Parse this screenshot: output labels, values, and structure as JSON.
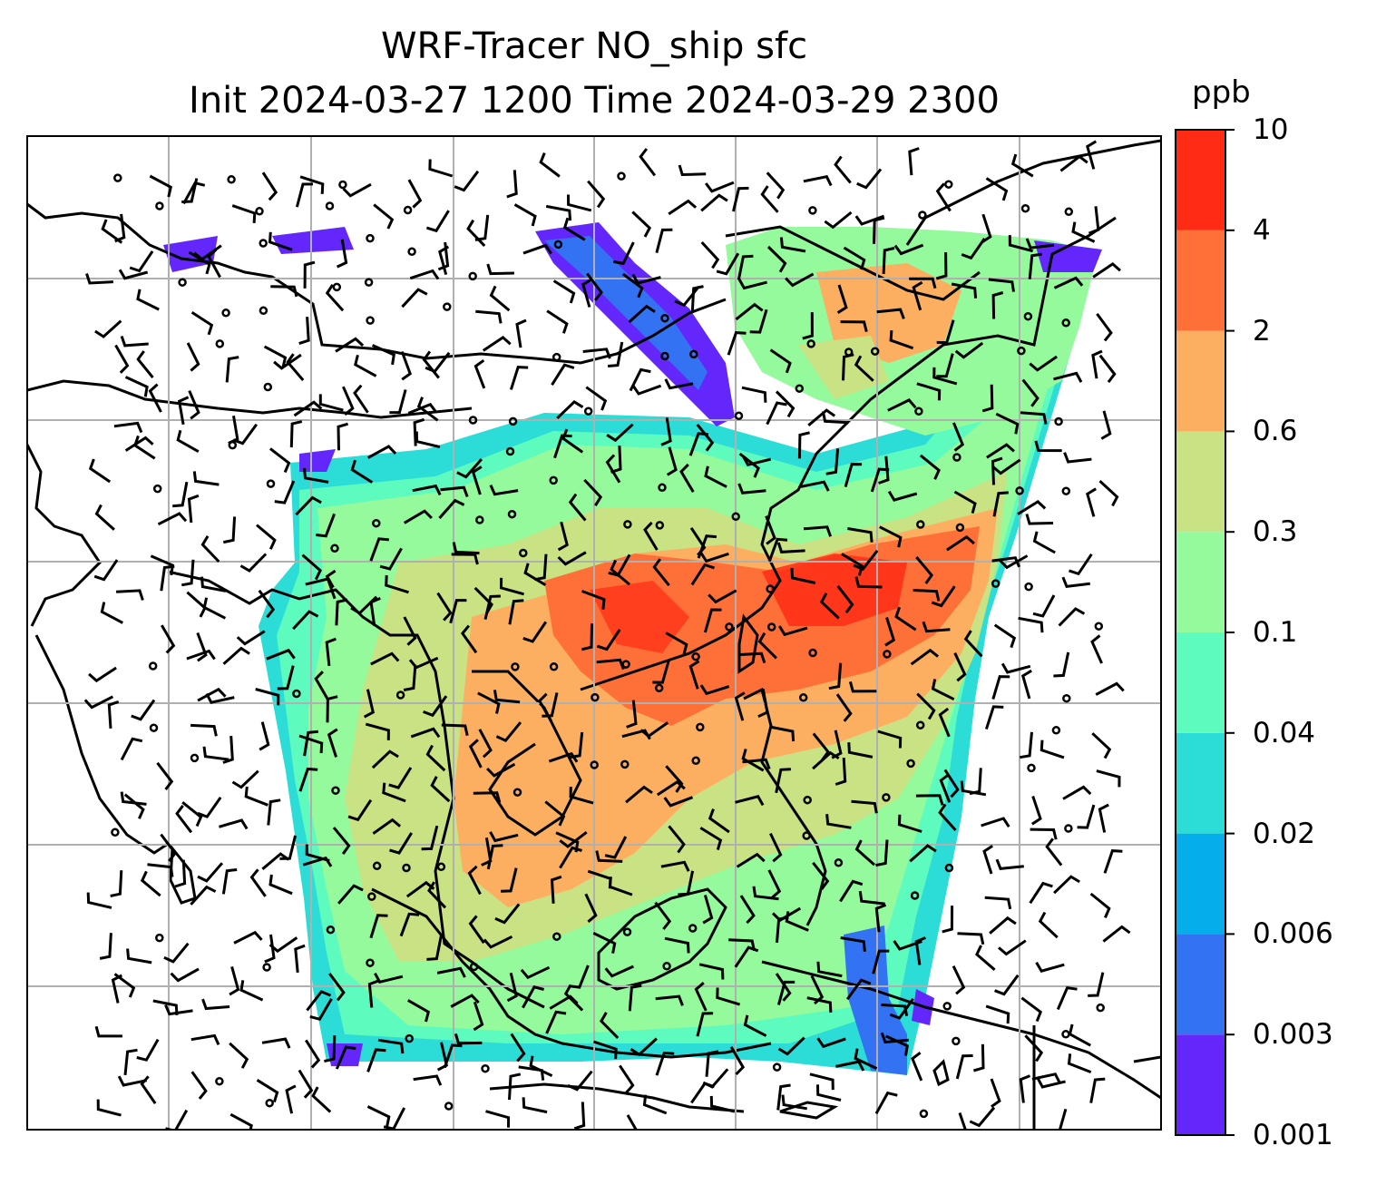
{
  "title": {
    "line1": "WRF-Tracer NO_ship sfc",
    "line2": "Init 2024-03-27 1200 Time 2024-03-29 2300"
  },
  "colorbar": {
    "unit": "ppb",
    "levels": [
      "0.001",
      "0.003",
      "0.006",
      "0.02",
      "0.04",
      "0.1",
      "0.3",
      "0.6",
      "2",
      "4",
      "10"
    ],
    "colors": [
      "#6327fb",
      "#3373f3",
      "#05aeeb",
      "#2cdcd6",
      "#5efbbf",
      "#94fa9c",
      "#c9e283",
      "#fcaf61",
      "#ff7038",
      "#ff2b14"
    ]
  },
  "map": {
    "background": "#ffffff",
    "gridline_color": "#b0b0b0",
    "coastline_color": "#000000",
    "features": [
      "coastlines",
      "gridlines",
      "wind-barbs",
      "calm-wind-circles",
      "concentration-field"
    ]
  }
}
